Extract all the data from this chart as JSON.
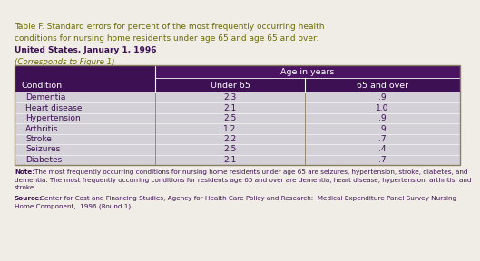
{
  "title_line1": "Table F. Standard errors for percent of the most frequently occurring health",
  "title_line2": "conditions for nursing home residents under age 65 and age 65 and over:",
  "title_line3": "United States, January 1, 1996",
  "title_line4": "(Corresponds to Figure 1)",
  "header_group": "Age in years",
  "col_headers": [
    "Condition",
    "Under 65",
    "65 and over"
  ],
  "rows": [
    [
      "Dementia",
      "2.3",
      ".9"
    ],
    [
      "Heart disease",
      "2.1",
      "1.0"
    ],
    [
      "Hypertension",
      "2.5",
      ".9"
    ],
    [
      "Arthritis",
      "1.2",
      ".9"
    ],
    [
      "Stroke",
      "2.2",
      ".7"
    ],
    [
      "Seizures",
      "2.5",
      ".4"
    ],
    [
      "Diabetes",
      "2.1",
      ".7"
    ]
  ],
  "note_bold": "Note:",
  "note_text": " The most frequently occurring conditions for nursing home residents under age 65 are seizures, hypertension, stroke, diabetes, and dementia. The most frequently occurring conditions for residents age 65 and over are dementia, heart disease, hypertension, arthritis, and stroke.",
  "source_bold": "Source:",
  "source_text": " Center for Cost and Financing Studies, Agency for Health Care Policy and Research:  Medical Expenditure Panel Survey Nursing Home Component,  1996 (Round 1).",
  "purple_dark": "#3d1054",
  "purple_header": "#4a1462",
  "table_bg": "#d4d0d8",
  "data_text_color": "#3d1054",
  "title_olive": "#6b6b00",
  "title_purple": "#3d1054",
  "note_color": "#3d1054",
  "border_color": "#8a8060",
  "bg_color": "#f0ede6"
}
